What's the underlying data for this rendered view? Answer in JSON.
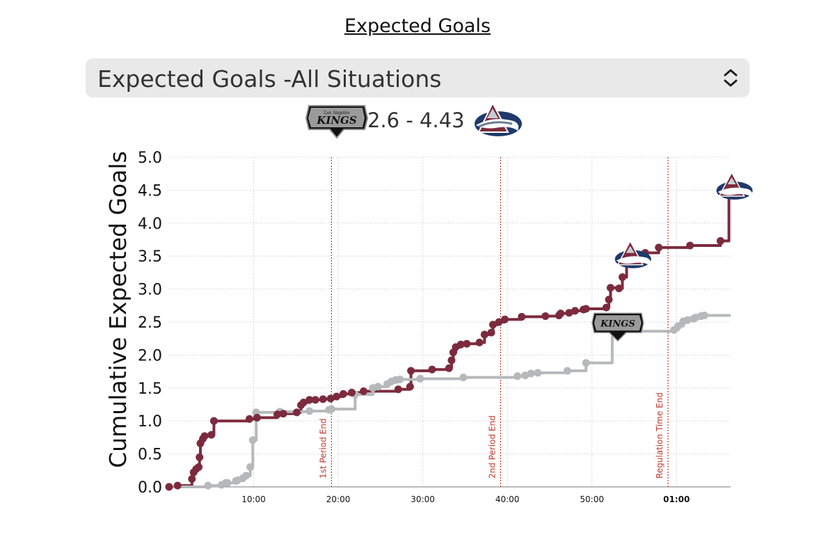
{
  "title": "Expected Goals",
  "selector": {
    "value": "Expected Goals -All Situations",
    "icon": "up-down-chevron-icon"
  },
  "scoreboard": {
    "home_score": "2.6",
    "separator": "-",
    "away_score": "4.43",
    "home_logo_text": "KINGS",
    "home_logo_subtext": "Los Angeles",
    "home_logo_icon": "kings-logo-icon",
    "away_logo_icon": "avalanche-logo-icon"
  },
  "chart_data": {
    "type": "line",
    "step": true,
    "ylabel": "Cumulative Expected Goals",
    "xlabel": "",
    "ylim": [
      0,
      5.0
    ],
    "xlim_minutes": [
      0,
      66.4
    ],
    "yticks": [
      "0.0",
      "0.5",
      "1.0",
      "1.5",
      "2.0",
      "2.5",
      "3.0",
      "3.5",
      "4.0",
      "4.5",
      "5.0"
    ],
    "xticks": [
      {
        "minute": 10,
        "label": "10:00",
        "bold": false
      },
      {
        "minute": 20,
        "label": "20:00",
        "bold": false
      },
      {
        "minute": 30,
        "label": "30:00",
        "bold": false
      },
      {
        "minute": 40,
        "label": "40:00",
        "bold": false
      },
      {
        "minute": 50,
        "label": "50:00",
        "bold": false
      },
      {
        "minute": 60,
        "label": "01:00",
        "bold": true
      }
    ],
    "period_markers": [
      {
        "minute": 19.2,
        "label": "1st Period End"
      },
      {
        "minute": 39.2,
        "label": "2nd Period End"
      },
      {
        "minute": 59.0,
        "label": "Regulation Time End"
      }
    ],
    "grid": true,
    "series": [
      {
        "name": "",
        "team": "Colorado",
        "color": "#7c2b3e",
        "points": [
          [
            0.0,
            0.0
          ],
          [
            1.0,
            0.02
          ],
          [
            2.7,
            0.12
          ],
          [
            2.9,
            0.22
          ],
          [
            3.2,
            0.27
          ],
          [
            3.5,
            0.3
          ],
          [
            3.6,
            0.45
          ],
          [
            3.7,
            0.66
          ],
          [
            4.0,
            0.73
          ],
          [
            4.2,
            0.77
          ],
          [
            5.0,
            0.79
          ],
          [
            5.3,
            1.0
          ],
          [
            9.5,
            1.03
          ],
          [
            10.4,
            1.05
          ],
          [
            12.8,
            1.1
          ],
          [
            13.5,
            1.11
          ],
          [
            15.1,
            1.13
          ],
          [
            15.6,
            1.24
          ],
          [
            15.9,
            1.28
          ],
          [
            16.6,
            1.32
          ],
          [
            17.3,
            1.32
          ],
          [
            18.2,
            1.33
          ],
          [
            19.1,
            1.34
          ],
          [
            19.8,
            1.37
          ],
          [
            20.6,
            1.41
          ],
          [
            21.6,
            1.43
          ],
          [
            23.0,
            1.45
          ],
          [
            27.1,
            1.48
          ],
          [
            28.5,
            1.52
          ],
          [
            28.6,
            1.76
          ],
          [
            31.1,
            1.78
          ],
          [
            33.1,
            1.8
          ],
          [
            33.4,
            1.92
          ],
          [
            33.6,
            2.04
          ],
          [
            33.9,
            2.12
          ],
          [
            34.5,
            2.16
          ],
          [
            35.2,
            2.17
          ],
          [
            36.7,
            2.19
          ],
          [
            37.3,
            2.31
          ],
          [
            38.1,
            2.34
          ],
          [
            38.3,
            2.46
          ],
          [
            39.0,
            2.5
          ],
          [
            39.7,
            2.54
          ],
          [
            41.7,
            2.58
          ],
          [
            44.5,
            2.59
          ],
          [
            46.1,
            2.6
          ],
          [
            46.3,
            2.63
          ],
          [
            47.3,
            2.64
          ],
          [
            48.0,
            2.67
          ],
          [
            49.0,
            2.69
          ],
          [
            49.3,
            2.7
          ],
          [
            51.7,
            2.72
          ],
          [
            52.0,
            2.84
          ],
          [
            52.2,
            3.02
          ],
          [
            53.2,
            3.01
          ],
          [
            53.6,
            3.18
          ],
          [
            54.1,
            3.39
          ],
          [
            55.1,
            3.48
          ],
          [
            56.3,
            3.55
          ],
          [
            57.9,
            3.63
          ],
          [
            61.6,
            3.66
          ],
          [
            65.2,
            3.73
          ],
          [
            66.2,
            4.43
          ]
        ]
      },
      {
        "name": "",
        "team": "Los Angeles",
        "color": "#b5b9bb",
        "points": [
          [
            0.0,
            0.0
          ],
          [
            4.6,
            0.02
          ],
          [
            6.2,
            0.03
          ],
          [
            6.7,
            0.06
          ],
          [
            6.9,
            0.06
          ],
          [
            7.9,
            0.09
          ],
          [
            8.1,
            0.1
          ],
          [
            8.7,
            0.13
          ],
          [
            9.1,
            0.17
          ],
          [
            9.6,
            0.3
          ],
          [
            9.9,
            0.71
          ],
          [
            10.3,
            1.13
          ],
          [
            13.1,
            1.14
          ],
          [
            16.6,
            1.15
          ],
          [
            18.9,
            1.17
          ],
          [
            19.2,
            1.18
          ],
          [
            22.0,
            1.4
          ],
          [
            24.1,
            1.5
          ],
          [
            24.7,
            1.52
          ],
          [
            25.8,
            1.56
          ],
          [
            26.3,
            1.6
          ],
          [
            26.8,
            1.62
          ],
          [
            27.3,
            1.63
          ],
          [
            29.7,
            1.64
          ],
          [
            34.8,
            1.66
          ],
          [
            41.2,
            1.68
          ],
          [
            42.1,
            1.69
          ],
          [
            42.8,
            1.72
          ],
          [
            43.6,
            1.73
          ],
          [
            47.1,
            1.76
          ],
          [
            49.3,
            1.88
          ],
          [
            52.4,
            2.36
          ],
          [
            59.7,
            2.38
          ],
          [
            60.2,
            2.44
          ],
          [
            60.8,
            2.51
          ],
          [
            61.3,
            2.53
          ],
          [
            62.0,
            2.55
          ],
          [
            62.3,
            2.57
          ],
          [
            62.9,
            2.59
          ],
          [
            63.3,
            2.6
          ],
          [
            66.4,
            2.6
          ]
        ]
      }
    ],
    "goal_markers": [
      {
        "minute": 54.2,
        "value": 3.39,
        "team": "Colorado"
      },
      {
        "minute": 66.2,
        "value": 4.43,
        "team": "Colorado"
      },
      {
        "minute": 52.4,
        "value": 2.36,
        "team": "Los Angeles"
      }
    ]
  }
}
